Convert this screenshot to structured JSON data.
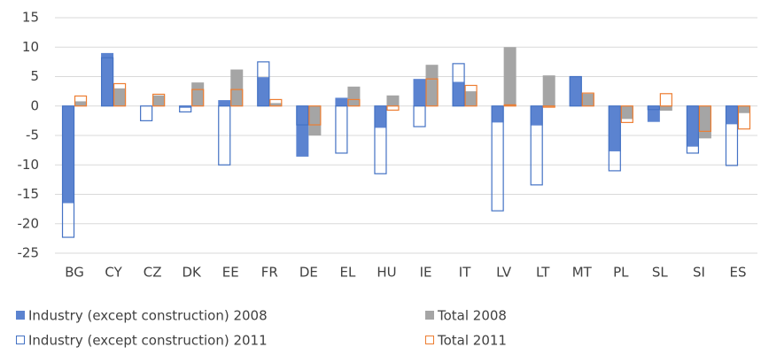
{
  "chart_data": {
    "type": "bar",
    "categories": [
      "BG",
      "CY",
      "CZ",
      "DK",
      "EE",
      "FR",
      "DE",
      "EL",
      "HU",
      "IE",
      "IT",
      "LV",
      "LT",
      "MT",
      "PL",
      "SL",
      "SI",
      "ES"
    ],
    "series": [
      {
        "name": "Industry (except construction) 2008",
        "color": "#5b83d0",
        "values": [
          -16.5,
          9,
          0,
          -0.3,
          1,
          4.9,
          -8.6,
          1.4,
          -3.7,
          4.6,
          4.1,
          -2.8,
          -3.3,
          5,
          -7.7,
          -2.7,
          -6.9,
          -3.1
        ]
      },
      {
        "name": "Total 2008",
        "color": "#a5a5a5",
        "values": [
          0.8,
          3,
          1.8,
          4,
          6.2,
          0.5,
          -5,
          3.3,
          1.8,
          7,
          2.5,
          10,
          5.2,
          2.1,
          -2.2,
          -0.8,
          -5.5,
          -1.2
        ]
      },
      {
        "name": "Industry (except construction) 2011",
        "color": "#4472c4",
        "values": [
          -22.3,
          8.2,
          -2.5,
          -1,
          -10,
          7.5,
          -3.2,
          -8,
          -11.5,
          -3.5,
          7.2,
          -17.8,
          -13.4,
          5,
          -11,
          -0.6,
          -8,
          -10.1
        ]
      },
      {
        "name": "Total 2011",
        "color": "#ed7d31",
        "values": [
          1.7,
          3.8,
          2,
          2.8,
          2.8,
          1.1,
          -3.2,
          1.1,
          -0.7,
          4.6,
          3.5,
          0.2,
          -0.2,
          2.2,
          -2.8,
          2.1,
          -4.3,
          -3.9
        ]
      }
    ],
    "ylim": [
      -25,
      15
    ],
    "yticks": [
      -25,
      -20,
      -15,
      -10,
      -5,
      0,
      5,
      10,
      15
    ],
    "grid": true
  }
}
